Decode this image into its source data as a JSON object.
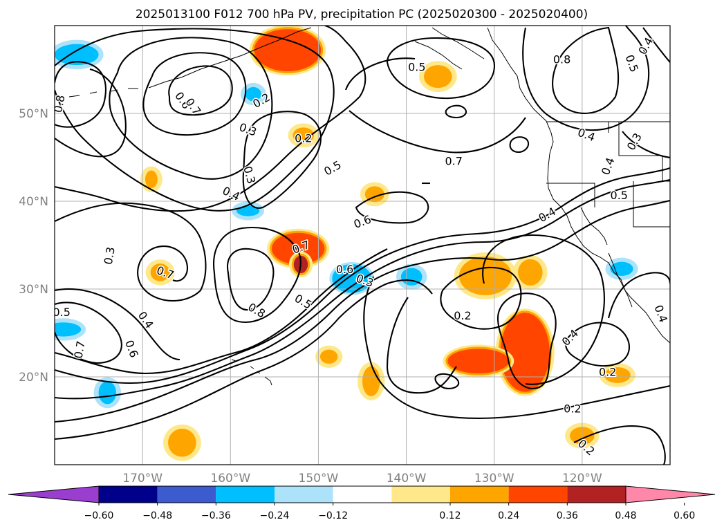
{
  "chart_data": {
    "type": "map-contour",
    "title": "2025013100 F012 700 hPa PV, precipitation PC (2025020300 - 2025020400)",
    "x_ticks": [
      "170°W",
      "160°W",
      "150°W",
      "140°W",
      "130°W",
      "120°W"
    ],
    "y_ticks": [
      "50°N",
      "40°N",
      "30°N",
      "20°N"
    ],
    "lon_range": [
      -180,
      -110
    ],
    "lat_range": [
      10,
      60
    ],
    "grid": true,
    "colorbar": {
      "orientation": "horizontal",
      "extend": "both",
      "tick_labels": [
        "−0.60",
        "−0.48",
        "−0.36",
        "−0.24",
        "−0.12",
        "0.12",
        "0.24",
        "0.36",
        "0.48",
        "0.60"
      ],
      "bins": [
        {
          "range": "< -0.60",
          "color": "#9a3ed0"
        },
        {
          "range": "-0.60 to -0.48",
          "color": "#00008b"
        },
        {
          "range": "-0.48 to -0.36",
          "color": "#3b5bcf"
        },
        {
          "range": "-0.36 to -0.24",
          "color": "#00bfff"
        },
        {
          "range": "-0.24 to -0.12",
          "color": "#ade3fa"
        },
        {
          "range": "-0.12 to 0.12",
          "color": "#ffffff"
        },
        {
          "range": "0.12 to 0.24",
          "color": "#ffe88a"
        },
        {
          "range": "0.24 to 0.36",
          "color": "#ffa500"
        },
        {
          "range": "0.36 to 0.48",
          "color": "#ff4500"
        },
        {
          "range": "0.48 to 0.60",
          "color": "#b22222"
        },
        {
          "range": "> 0.60",
          "color": "#ff88aa"
        }
      ]
    },
    "contour_labels": [
      {
        "text": "0.2",
        "lon": -156.5,
        "lat": 51.5,
        "rot": -30
      },
      {
        "text": "0.3",
        "lon": -158,
        "lat": 48.2,
        "rot": 20
      },
      {
        "text": "0.6",
        "lon": -165.4,
        "lat": 51.5,
        "rot": 55
      },
      {
        "text": "0.7",
        "lon": -164.2,
        "lat": 50.8,
        "rot": 55
      },
      {
        "text": "0.8",
        "lon": -179.5,
        "lat": 51.1,
        "rot": -80
      },
      {
        "text": "0.2",
        "lon": -151.7,
        "lat": 47.2,
        "rot": 0
      },
      {
        "text": "0.3",
        "lon": -157.8,
        "lat": 43.0,
        "rot": 75
      },
      {
        "text": "0.4",
        "lon": -159.9,
        "lat": 40.9,
        "rot": 25
      },
      {
        "text": "0.5",
        "lon": -148.4,
        "lat": 43.8,
        "rot": -30
      },
      {
        "text": "0.5",
        "lon": -138.8,
        "lat": 55.3,
        "rot": 0
      },
      {
        "text": "0.6",
        "lon": -145.0,
        "lat": 37.7,
        "rot": -20
      },
      {
        "text": "0.7",
        "lon": -152.0,
        "lat": 34.8,
        "rot": -20
      },
      {
        "text": "0.7",
        "lon": -167.4,
        "lat": 31.9,
        "rot": 20
      },
      {
        "text": "0.6",
        "lon": -147.0,
        "lat": 32.3,
        "rot": 0
      },
      {
        "text": "0.5",
        "lon": -151.7,
        "lat": 28.6,
        "rot": 30
      },
      {
        "text": "0.3",
        "lon": -144.7,
        "lat": 31.0,
        "rot": 20
      },
      {
        "text": "0.8",
        "lon": -157.0,
        "lat": 27.6,
        "rot": 30
      },
      {
        "text": "0.3",
        "lon": -173.8,
        "lat": 33.8,
        "rot": -80
      },
      {
        "text": "0.4",
        "lon": -169.6,
        "lat": 26.5,
        "rot": 55
      },
      {
        "text": "0.5",
        "lon": -179.2,
        "lat": 27.4,
        "rot": 0
      },
      {
        "text": "0.7",
        "lon": -177.2,
        "lat": 23.1,
        "rot": -80
      },
      {
        "text": "0.6",
        "lon": -171.2,
        "lat": 23.2,
        "rot": 70
      },
      {
        "text": "0.2",
        "lon": -133.6,
        "lat": 27.0,
        "rot": 0
      },
      {
        "text": "0.7",
        "lon": -134.6,
        "lat": 44.6,
        "rot": 0
      },
      {
        "text": "0.8",
        "lon": -122.3,
        "lat": 56.2,
        "rot": 0
      },
      {
        "text": "0.4",
        "lon": -121.4,
        "lat": 24.5,
        "rot": -45
      },
      {
        "text": "0.4",
        "lon": -124.0,
        "lat": 38.5,
        "rot": -30
      },
      {
        "text": "0.2",
        "lon": -117.1,
        "lat": 20.6,
        "rot": 0
      },
      {
        "text": "0.2",
        "lon": -121.1,
        "lat": 16.4,
        "rot": 0
      },
      {
        "text": "0.2",
        "lon": -119.5,
        "lat": 12.0,
        "rot": 40
      },
      {
        "text": "0.4",
        "lon": -119.5,
        "lat": 47.6,
        "rot": 20
      },
      {
        "text": "0.4",
        "lon": -117.1,
        "lat": 44.0,
        "rot": -70
      },
      {
        "text": "0.5",
        "lon": -115.8,
        "lat": 40.7,
        "rot": 0
      },
      {
        "text": "0.5",
        "lon": -114.3,
        "lat": 55.7,
        "rot": 70
      },
      {
        "text": "0.4",
        "lon": -112.8,
        "lat": 57.7,
        "rot": -60
      },
      {
        "text": "0.4",
        "lon": -111.0,
        "lat": 27.2,
        "rot": 70
      },
      {
        "text": "0.3",
        "lon": -114.1,
        "lat": 46.8,
        "rot": -60
      }
    ],
    "precip_patches": [
      {
        "lon": -153.5,
        "lat": 57.2,
        "rx": 3.8,
        "ry": 2.4,
        "level": 0.36,
        "color": "#ff4500"
      },
      {
        "lon": -152.3,
        "lat": 34.6,
        "rx": 3.0,
        "ry": 1.8,
        "level": 0.36,
        "color": "#ff4500"
      },
      {
        "lon": -152.0,
        "lat": 32.8,
        "rx": 0.8,
        "ry": 1.0,
        "level": 0.48,
        "color": "#b22222"
      },
      {
        "lon": -126.5,
        "lat": 22.8,
        "rx": 2.8,
        "ry": 4.5,
        "level": 0.36,
        "color": "#ff4500"
      },
      {
        "lon": -131.8,
        "lat": 21.8,
        "rx": 3.5,
        "ry": 1.4,
        "level": 0.36,
        "color": "#ff4500"
      },
      {
        "lon": -131.0,
        "lat": 31.5,
        "rx": 3.0,
        "ry": 2.2,
        "level": 0.24,
        "color": "#ffa500"
      },
      {
        "lon": -146.2,
        "lat": 31.2,
        "rx": 2.0,
        "ry": 1.4,
        "level": -0.36,
        "color": "#00bfff"
      },
      {
        "lon": -177.5,
        "lat": 56.7,
        "rx": 2.5,
        "ry": 1.2,
        "level": -0.24,
        "color": "#00bfff"
      },
      {
        "lon": -179.0,
        "lat": 25.4,
        "rx": 2.0,
        "ry": 0.8,
        "level": -0.24,
        "color": "#00bfff"
      },
      {
        "lon": -139.4,
        "lat": 31.4,
        "rx": 1.2,
        "ry": 1.0,
        "level": -0.24,
        "color": "#00bfff"
      },
      {
        "lon": -168.0,
        "lat": 31.9,
        "rx": 1.1,
        "ry": 1.0,
        "level": 0.24,
        "color": "#ffa500"
      },
      {
        "lon": -144.0,
        "lat": 19.5,
        "rx": 1.0,
        "ry": 1.7,
        "level": 0.24,
        "color": "#ffa500"
      },
      {
        "lon": -116.0,
        "lat": 20.2,
        "rx": 1.5,
        "ry": 0.9,
        "level": 0.24,
        "color": "#ffa500"
      },
      {
        "lon": -120.0,
        "lat": 13.3,
        "rx": 1.4,
        "ry": 1.0,
        "level": 0.24,
        "color": "#ffa500"
      },
      {
        "lon": -165.5,
        "lat": 12.5,
        "rx": 1.6,
        "ry": 1.6,
        "level": 0.24,
        "color": "#ffa500"
      },
      {
        "lon": -136.4,
        "lat": 54.2,
        "rx": 1.6,
        "ry": 1.3,
        "level": 0.24,
        "color": "#ffa500"
      },
      {
        "lon": -148.8,
        "lat": 22.3,
        "rx": 1.0,
        "ry": 0.8,
        "level": 0.24,
        "color": "#ffa500"
      },
      {
        "lon": -151.7,
        "lat": 47.5,
        "rx": 1.2,
        "ry": 0.9,
        "level": 0.24,
        "color": "#ffa500"
      },
      {
        "lon": -143.6,
        "lat": 40.8,
        "rx": 1.1,
        "ry": 0.9,
        "level": 0.24,
        "color": "#ffa500"
      },
      {
        "lon": -169.0,
        "lat": 42.5,
        "rx": 0.7,
        "ry": 1.0,
        "level": 0.24,
        "color": "#ffa500"
      },
      {
        "lon": -157.4,
        "lat": 52.2,
        "rx": 0.9,
        "ry": 0.8,
        "level": -0.24,
        "color": "#00bfff"
      },
      {
        "lon": -158.0,
        "lat": 38.9,
        "rx": 1.3,
        "ry": 0.6,
        "level": -0.24,
        "color": "#00bfff"
      },
      {
        "lon": -174.0,
        "lat": 18.2,
        "rx": 1.0,
        "ry": 1.3,
        "level": -0.24,
        "color": "#00bfff"
      },
      {
        "lon": -115.5,
        "lat": 32.3,
        "rx": 1.3,
        "ry": 0.8,
        "level": -0.24,
        "color": "#00bfff"
      },
      {
        "lon": -125.9,
        "lat": 31.9,
        "rx": 1.4,
        "ry": 1.5,
        "level": 0.24,
        "color": "#ffa500"
      }
    ]
  }
}
